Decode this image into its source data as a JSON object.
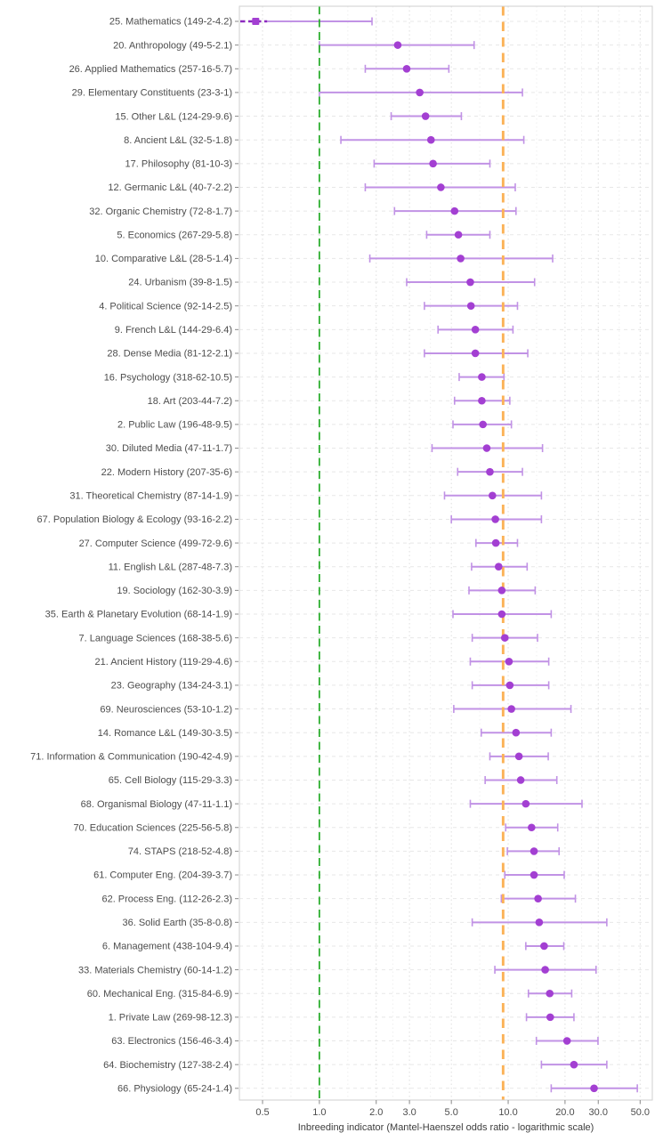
{
  "figure": {
    "title": "",
    "xlabel": "Inbreeding indicator (Mantel-Haenszel odds ratio - logarithmic scale)"
  },
  "colors": {
    "point": "#a33fd2",
    "errorbar": "#c192e5",
    "truncated_segment": "#8d2bbf",
    "ref_null": "#23ab26",
    "ref_overall": "#fbb257",
    "grid_row": "#e7e7e7",
    "grid_major": "#dedede",
    "grid_minor": "#efefef",
    "panel_border": "#cfcfcf",
    "tick": "#8a8a8a",
    "text": "#4d4d4d",
    "background": "#ffffff"
  },
  "chart_data": {
    "type": "scatter",
    "subtype": "forest-plot-with-ci",
    "title": "",
    "xlabel": "Inbreeding indicator (Mantel-Haenszel odds ratio - logarithmic scale)",
    "ylabel": "",
    "x_scale": "log10",
    "x_range": [
      0.377,
      58
    ],
    "grid": "on",
    "legend_position": "none",
    "x_ticks": [
      {
        "v": 0.5,
        "label": "0.5"
      },
      {
        "v": 1.0,
        "label": "1.0"
      },
      {
        "v": 2.0,
        "label": "2.0"
      },
      {
        "v": 3.0,
        "label": "3.0"
      },
      {
        "v": 5.0,
        "label": "5.0"
      },
      {
        "v": 10.0,
        "label": "10.0"
      },
      {
        "v": 20.0,
        "label": "20.0"
      },
      {
        "v": 30.0,
        "label": "30.0"
      },
      {
        "v": 50.0,
        "label": "50.0"
      }
    ],
    "x_minor_ticks": [
      0.707,
      1.414,
      2.449,
      3.873,
      7.071,
      14.142,
      24.495,
      38.73
    ],
    "reference_lines": [
      {
        "name": "null-odds-ratio-line",
        "value": 1.0,
        "color": "#23ab26",
        "style": "dashed"
      },
      {
        "name": "overall-odds-ratio-line",
        "value": 9.4,
        "color": "#fbb257",
        "style": "dashed"
      }
    ],
    "rows": [
      {
        "label": "25. Mathematics (149-2-4.2)",
        "estimate": 0.46,
        "ci_low": 0.38,
        "ci_high": 1.9,
        "ci_low_truncated": true,
        "marker": "square"
      },
      {
        "label": "20. Anthropology (49-5-2.1)",
        "estimate": 2.6,
        "ci_low": 1.0,
        "ci_high": 6.6
      },
      {
        "label": "26. Applied Mathematics (257-16-5.7)",
        "estimate": 2.9,
        "ci_low": 1.75,
        "ci_high": 4.85
      },
      {
        "label": "29. Elementary Constituents (23-3-1)",
        "estimate": 3.4,
        "ci_low": 1.0,
        "ci_high": 11.9
      },
      {
        "label": "15. Other L&L (124-29-9.6)",
        "estimate": 3.65,
        "ci_low": 2.4,
        "ci_high": 5.65
      },
      {
        "label": "8. Ancient L&L (32-5-1.8)",
        "estimate": 3.9,
        "ci_low": 1.3,
        "ci_high": 12.1
      },
      {
        "label": "17. Philosophy (81-10-3)",
        "estimate": 4.0,
        "ci_low": 1.95,
        "ci_high": 8.0
      },
      {
        "label": "12. Germanic L&L (40-7-2.2)",
        "estimate": 4.4,
        "ci_low": 1.75,
        "ci_high": 10.9
      },
      {
        "label": "32. Organic Chemistry (72-8-1.7)",
        "estimate": 5.2,
        "ci_low": 2.5,
        "ci_high": 11.0
      },
      {
        "label": "5. Economics (267-29-5.8)",
        "estimate": 5.45,
        "ci_low": 3.7,
        "ci_high": 8.0
      },
      {
        "label": "10. Comparative L&L (28-5-1.4)",
        "estimate": 5.6,
        "ci_low": 1.85,
        "ci_high": 17.2
      },
      {
        "label": "24. Urbanism (39-8-1.5)",
        "estimate": 6.3,
        "ci_low": 2.9,
        "ci_high": 13.8
      },
      {
        "label": "4. Political Science (92-14-2.5)",
        "estimate": 6.35,
        "ci_low": 3.6,
        "ci_high": 11.2
      },
      {
        "label": "9. French L&L (144-29-6.4)",
        "estimate": 6.7,
        "ci_low": 4.25,
        "ci_high": 10.6
      },
      {
        "label": "28. Dense Media (81-12-2.1)",
        "estimate": 6.7,
        "ci_low": 3.6,
        "ci_high": 12.7
      },
      {
        "label": "16. Psychology (318-62-10.5)",
        "estimate": 7.25,
        "ci_low": 5.5,
        "ci_high": 9.5
      },
      {
        "label": "18. Art (203-44-7.2)",
        "estimate": 7.25,
        "ci_low": 5.2,
        "ci_high": 10.2
      },
      {
        "label": "2. Public Law (196-48-9.5)",
        "estimate": 7.35,
        "ci_low": 5.1,
        "ci_high": 10.4
      },
      {
        "label": "30. Diluted Media (47-11-1.7)",
        "estimate": 7.7,
        "ci_low": 3.95,
        "ci_high": 15.2
      },
      {
        "label": "22. Modern History (207-35-6)",
        "estimate": 8.0,
        "ci_low": 5.4,
        "ci_high": 11.9
      },
      {
        "label": "31. Theoretical Chemistry (87-14-1.9)",
        "estimate": 8.25,
        "ci_low": 4.6,
        "ci_high": 15.0
      },
      {
        "label": "67. Population Biology & Ecology (93-16-2.2)",
        "estimate": 8.55,
        "ci_low": 5.0,
        "ci_high": 15.0
      },
      {
        "label": "27. Computer Science (499-72-9.6)",
        "estimate": 8.6,
        "ci_low": 6.75,
        "ci_high": 11.2
      },
      {
        "label": "11. English L&L (287-48-7.3)",
        "estimate": 8.9,
        "ci_low": 6.4,
        "ci_high": 12.6
      },
      {
        "label": "19. Sociology (162-30-3.9)",
        "estimate": 9.25,
        "ci_low": 6.2,
        "ci_high": 13.9
      },
      {
        "label": "35. Earth & Planetary Evolution (68-14-1.9)",
        "estimate": 9.25,
        "ci_low": 5.1,
        "ci_high": 16.9
      },
      {
        "label": "7. Language Sciences (168-38-5.6)",
        "estimate": 9.6,
        "ci_low": 6.45,
        "ci_high": 14.3
      },
      {
        "label": "21. Ancient History (119-29-4.6)",
        "estimate": 10.1,
        "ci_low": 6.3,
        "ci_high": 16.4
      },
      {
        "label": "23. Geography (134-24-3.1)",
        "estimate": 10.2,
        "ci_low": 6.45,
        "ci_high": 16.4
      },
      {
        "label": "69. Neurosciences (53-10-1.2)",
        "estimate": 10.4,
        "ci_low": 5.15,
        "ci_high": 21.5
      },
      {
        "label": "14. Romance L&L (149-30-3.5)",
        "estimate": 11.0,
        "ci_low": 7.2,
        "ci_high": 16.9
      },
      {
        "label": "71. Information & Communication (190-42-4.9)",
        "estimate": 11.4,
        "ci_low": 8.0,
        "ci_high": 16.3
      },
      {
        "label": "65. Cell Biology (115-29-3.3)",
        "estimate": 11.65,
        "ci_low": 7.55,
        "ci_high": 18.1
      },
      {
        "label": "68. Organismal Biology (47-11-1.1)",
        "estimate": 12.4,
        "ci_low": 6.3,
        "ci_high": 24.6
      },
      {
        "label": "70. Education Sciences (225-56-5.8)",
        "estimate": 13.3,
        "ci_low": 9.7,
        "ci_high": 18.3
      },
      {
        "label": "74. STAPS (218-52-4.8)",
        "estimate": 13.7,
        "ci_low": 9.9,
        "ci_high": 18.6
      },
      {
        "label": "61. Computer Eng. (204-39-3.7)",
        "estimate": 13.7,
        "ci_low": 9.6,
        "ci_high": 19.8
      },
      {
        "label": "62. Process Eng. (112-26-2.3)",
        "estimate": 14.4,
        "ci_low": 9.2,
        "ci_high": 22.7
      },
      {
        "label": "36. Solid Earth (35-8-0.8)",
        "estimate": 14.6,
        "ci_low": 6.45,
        "ci_high": 33.3
      },
      {
        "label": "6. Management (438-104-9.4)",
        "estimate": 15.5,
        "ci_low": 12.4,
        "ci_high": 19.7
      },
      {
        "label": "33. Materials Chemistry (60-14-1.2)",
        "estimate": 15.7,
        "ci_low": 8.5,
        "ci_high": 29.2
      },
      {
        "label": "60. Mechanical Eng. (315-84-6.9)",
        "estimate": 16.6,
        "ci_low": 12.8,
        "ci_high": 21.7
      },
      {
        "label": "1. Private Law (269-98-12.3)",
        "estimate": 16.7,
        "ci_low": 12.5,
        "ci_high": 22.3
      },
      {
        "label": "63. Electronics (156-46-3.4)",
        "estimate": 20.5,
        "ci_low": 14.1,
        "ci_high": 29.9
      },
      {
        "label": "64. Biochemistry (127-38-2.4)",
        "estimate": 22.3,
        "ci_low": 15.0,
        "ci_high": 33.3
      },
      {
        "label": "66. Physiology (65-24-1.4)",
        "estimate": 28.5,
        "ci_low": 16.9,
        "ci_high": 48.3
      }
    ]
  }
}
